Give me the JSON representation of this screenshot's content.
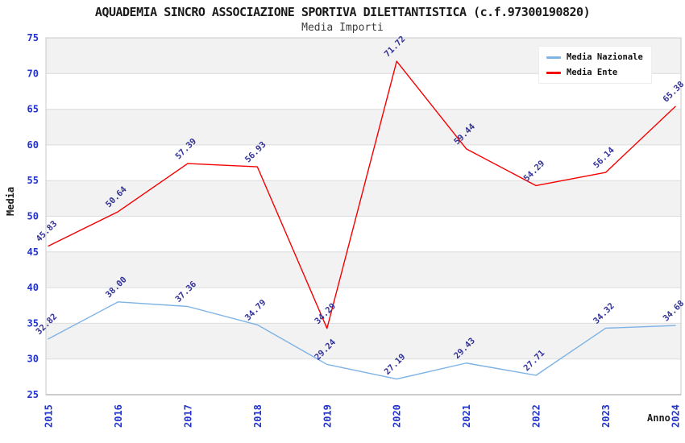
{
  "colors": {
    "tick_label": "#2233CC",
    "point_label": "#333399",
    "band_gray": "#F2F2F2",
    "band_white": "#FFFFFF",
    "grid": "#DCDCDC",
    "frame": "#C8C8C8",
    "series_nazionale": "#7EB3E6",
    "series_ente": "#F40000"
  },
  "chart_data": {
    "type": "line",
    "title": "AQUADEMIA SINCRO ASSOCIAZIONE SPORTIVA DILETTANTISTICA (c.f.97300190820)",
    "subtitle": "Media Importi",
    "xlabel": "Anno",
    "ylabel": "Media",
    "categories": [
      "2015",
      "2016",
      "2017",
      "2018",
      "2019",
      "2020",
      "2021",
      "2022",
      "2023",
      "2024"
    ],
    "ylim": [
      25,
      75
    ],
    "ytick_step": 5,
    "yticks": [
      25,
      30,
      35,
      40,
      45,
      50,
      55,
      60,
      65,
      70,
      75
    ],
    "grid": true,
    "banded_background": true,
    "legend_position": "top-right",
    "point_label_decimals": 2,
    "series": [
      {
        "name": "Media Nazionale",
        "color": "#7EB3E6",
        "values": [
          32.82,
          38.0,
          37.36,
          34.79,
          29.24,
          27.19,
          29.43,
          27.71,
          34.32,
          34.68
        ]
      },
      {
        "name": "Media Ente",
        "color": "#F40000",
        "values": [
          45.83,
          50.64,
          57.39,
          56.93,
          34.29,
          71.72,
          59.44,
          54.29,
          56.14,
          65.38
        ]
      }
    ]
  }
}
